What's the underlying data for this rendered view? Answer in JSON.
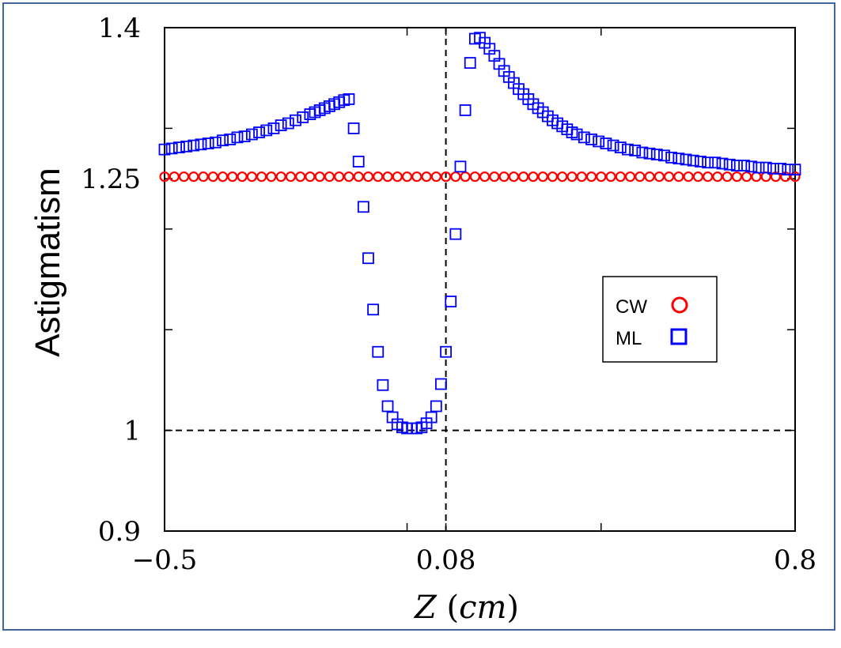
{
  "chart_data": {
    "type": "scatter",
    "title": "",
    "xlabel_var": "Z",
    "xlabel_unit": "cm",
    "xlabel": "Z (cm)",
    "ylabel": "Astigmatism",
    "xlim": [
      -0.5,
      0.8
    ],
    "ylim": [
      0.9,
      1.4
    ],
    "x_ticks": [
      "−0.5",
      "0.08",
      "0.8"
    ],
    "y_ticks": [
      "1.4",
      "1.25",
      "1",
      "0.9"
    ],
    "legend_location": "center-right",
    "reference_lines": {
      "vertical_x": 0.08,
      "horizontal_y": 1.0
    },
    "series": [
      {
        "name": "CW",
        "marker": "circle",
        "color": "#ff0000",
        "x": [
          -0.5,
          -0.48,
          -0.46,
          -0.44,
          -0.42,
          -0.4,
          -0.38,
          -0.36,
          -0.34,
          -0.32,
          -0.3,
          -0.28,
          -0.26,
          -0.24,
          -0.22,
          -0.2,
          -0.18,
          -0.16,
          -0.14,
          -0.12,
          -0.1,
          -0.08,
          -0.06,
          -0.04,
          -0.02,
          0.0,
          0.02,
          0.04,
          0.06,
          0.08,
          0.1,
          0.12,
          0.14,
          0.16,
          0.18,
          0.2,
          0.22,
          0.24,
          0.26,
          0.28,
          0.3,
          0.32,
          0.34,
          0.36,
          0.38,
          0.4,
          0.42,
          0.44,
          0.46,
          0.48,
          0.5,
          0.52,
          0.54,
          0.56,
          0.58,
          0.6,
          0.62,
          0.64,
          0.66,
          0.68,
          0.7,
          0.72,
          0.74,
          0.76,
          0.78,
          0.8
        ],
        "y": [
          1.252,
          1.252,
          1.252,
          1.252,
          1.252,
          1.252,
          1.252,
          1.252,
          1.252,
          1.252,
          1.252,
          1.252,
          1.252,
          1.252,
          1.252,
          1.252,
          1.252,
          1.252,
          1.252,
          1.252,
          1.252,
          1.252,
          1.252,
          1.252,
          1.252,
          1.252,
          1.252,
          1.252,
          1.252,
          1.252,
          1.252,
          1.252,
          1.252,
          1.252,
          1.252,
          1.252,
          1.252,
          1.252,
          1.252,
          1.252,
          1.252,
          1.252,
          1.252,
          1.252,
          1.252,
          1.252,
          1.252,
          1.252,
          1.252,
          1.252,
          1.252,
          1.252,
          1.252,
          1.252,
          1.252,
          1.252,
          1.252,
          1.252,
          1.252,
          1.252,
          1.252,
          1.252,
          1.252,
          1.252,
          1.252,
          1.252
        ]
      },
      {
        "name": "ML",
        "marker": "square",
        "color": "#0000ff",
        "x": [
          -0.5,
          -0.485,
          -0.47,
          -0.455,
          -0.44,
          -0.425,
          -0.41,
          -0.395,
          -0.38,
          -0.365,
          -0.35,
          -0.335,
          -0.32,
          -0.305,
          -0.29,
          -0.275,
          -0.26,
          -0.245,
          -0.23,
          -0.215,
          -0.2,
          -0.19,
          -0.18,
          -0.17,
          -0.16,
          -0.15,
          -0.14,
          -0.13,
          -0.12,
          -0.11,
          -0.1,
          -0.09,
          -0.08,
          -0.07,
          -0.06,
          -0.05,
          -0.04,
          -0.03,
          -0.02,
          -0.01,
          0.0,
          0.01,
          0.02,
          0.03,
          0.04,
          0.05,
          0.06,
          0.07,
          0.08,
          0.09,
          0.1,
          0.11,
          0.12,
          0.13,
          0.14,
          0.15,
          0.16,
          0.17,
          0.18,
          0.19,
          0.2,
          0.21,
          0.22,
          0.23,
          0.24,
          0.25,
          0.26,
          0.27,
          0.28,
          0.29,
          0.3,
          0.31,
          0.32,
          0.33,
          0.34,
          0.35,
          0.365,
          0.38,
          0.395,
          0.41,
          0.425,
          0.44,
          0.455,
          0.47,
          0.485,
          0.5,
          0.515,
          0.53,
          0.545,
          0.56,
          0.575,
          0.59,
          0.605,
          0.62,
          0.635,
          0.65,
          0.665,
          0.68,
          0.695,
          0.71,
          0.725,
          0.74,
          0.755,
          0.77,
          0.785,
          0.8
        ],
        "y": [
          1.279,
          1.28,
          1.281,
          1.282,
          1.283,
          1.284,
          1.285,
          1.286,
          1.288,
          1.289,
          1.291,
          1.292,
          1.294,
          1.296,
          1.298,
          1.3,
          1.303,
          1.305,
          1.308,
          1.311,
          1.314,
          1.316,
          1.318,
          1.32,
          1.322,
          1.324,
          1.326,
          1.328,
          1.329,
          1.3,
          1.267,
          1.222,
          1.171,
          1.12,
          1.078,
          1.045,
          1.024,
          1.013,
          1.006,
          1.003,
          1.002,
          1.002,
          1.002,
          1.003,
          1.007,
          1.013,
          1.024,
          1.046,
          1.078,
          1.128,
          1.195,
          1.262,
          1.318,
          1.365,
          1.389,
          1.39,
          1.385,
          1.379,
          1.372,
          1.364,
          1.357,
          1.351,
          1.345,
          1.339,
          1.334,
          1.329,
          1.324,
          1.32,
          1.316,
          1.312,
          1.308,
          1.305,
          1.302,
          1.299,
          1.296,
          1.294,
          1.291,
          1.289,
          1.287,
          1.285,
          1.283,
          1.281,
          1.279,
          1.278,
          1.276,
          1.275,
          1.274,
          1.273,
          1.271,
          1.27,
          1.269,
          1.268,
          1.267,
          1.266,
          1.266,
          1.265,
          1.264,
          1.263,
          1.263,
          1.262,
          1.261,
          1.261,
          1.26,
          1.26,
          1.259,
          1.259
        ]
      }
    ]
  }
}
